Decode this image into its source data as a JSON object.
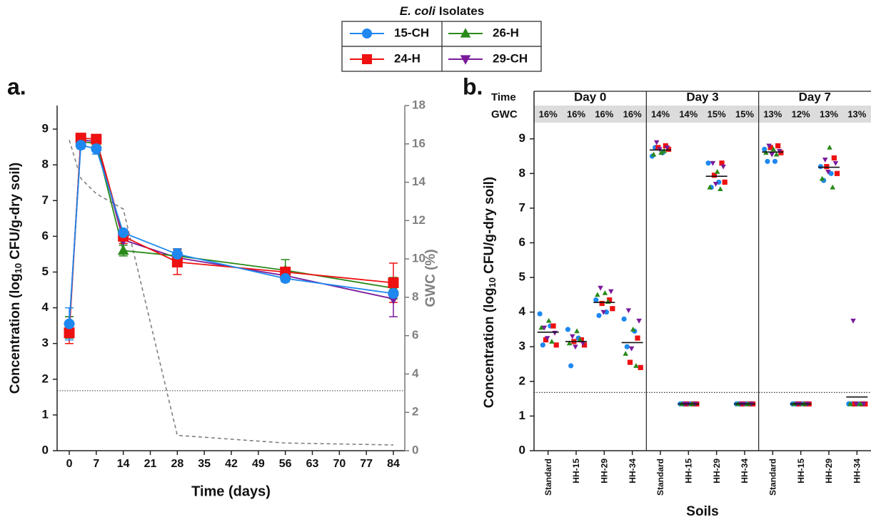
{
  "chart_data": [
    {
      "type": "line",
      "panel_label": "a.",
      "legend_title": [
        "E. coli",
        "Isolates"
      ],
      "x_label": "Time (days)",
      "y_label": [
        "Concentration (log",
        "10",
        "CFU/g-dry soil)"
      ],
      "y2_label": "GWC (%)",
      "x": [
        0,
        3,
        7,
        14,
        28,
        56,
        84
      ],
      "xlim": [
        -3.15,
        86.96
      ],
      "xticks": [
        0,
        7,
        14,
        21,
        28,
        35,
        42,
        49,
        56,
        63,
        70,
        77,
        84
      ],
      "ylim": [
        0,
        9.66
      ],
      "yticks": [
        0,
        1,
        2,
        3,
        4,
        5,
        6,
        7,
        8,
        9
      ],
      "y2lim": [
        0,
        18
      ],
      "y2ticks": [
        0,
        2,
        4,
        6,
        8,
        10,
        12,
        14,
        16,
        18
      ],
      "reference_line": 1.68,
      "series": [
        {
          "name": "15-CH",
          "color": "#1e88f0",
          "marker": "circle",
          "values": [
            3.55,
            8.55,
            8.45,
            6.1,
            5.5,
            4.82,
            4.4
          ],
          "errors": [
            0.45,
            0.1,
            0.15,
            0.1,
            0.15,
            0.1,
            0.1
          ]
        },
        {
          "name": "24-H",
          "color": "#ee1111",
          "marker": "square",
          "values": [
            3.3,
            8.75,
            8.72,
            6.0,
            5.28,
            5.0,
            4.7
          ],
          "errors": [
            0.3,
            0.05,
            0.05,
            0.2,
            0.35,
            0.1,
            0.55
          ]
        },
        {
          "name": "26-H",
          "color": "#2a8a1a",
          "marker": "triangle",
          "values": [
            3.45,
            8.65,
            8.6,
            5.6,
            5.45,
            5.05,
            4.55
          ],
          "errors": [
            0.3,
            0.1,
            0.1,
            0.15,
            0.2,
            0.3,
            0.3
          ]
        },
        {
          "name": "29-CH",
          "color": "#7a1a9a",
          "marker": "triangle-down",
          "values": [
            3.45,
            8.7,
            8.65,
            5.9,
            5.4,
            4.9,
            4.25
          ],
          "errors": [
            0.3,
            0.1,
            0.1,
            0.1,
            0.25,
            0.15,
            0.5
          ]
        },
        {
          "axis": "y2",
          "color": "#808080",
          "line_style": "dashed",
          "values": [
            16.2,
            14.2,
            13.4,
            12.6,
            0.8,
            0.4,
            0.3
          ]
        }
      ]
    },
    {
      "type": "dotplot",
      "panel_label": "b.",
      "x_label": "Soils",
      "y_label": [
        "Concentration (log",
        "10",
        "CFU/g-dry soil)"
      ],
      "header_labels": [
        "Time",
        "GWC"
      ],
      "categories": [
        "Standard",
        "HH-15",
        "HH-29",
        "HH-34",
        "Standard",
        "HH-15",
        "HH-29",
        "HH-34",
        "Standard",
        "HH-15",
        "HH-29",
        "HH-34"
      ],
      "groups": [
        {
          "label": "Day 0",
          "gwc": [
            {
              "value": 16,
              "label": "16%"
            },
            {
              "value": 16,
              "label": "16%"
            },
            {
              "value": 16,
              "label": "16%"
            },
            {
              "value": 16,
              "label": "16%"
            }
          ]
        },
        {
          "label": "Day 3",
          "gwc": [
            {
              "value": 14,
              "label": "14%"
            },
            {
              "value": 14,
              "label": "14%"
            },
            {
              "value": 15,
              "label": "15%"
            },
            {
              "value": 15,
              "label": "15%"
            }
          ]
        },
        {
          "label": "Day 7",
          "gwc": [
            {
              "value": 13,
              "label": "13%"
            },
            {
              "value": 12,
              "label": "12%"
            },
            {
              "value": 13,
              "label": "13%"
            },
            {
              "value": 13,
              "label": "13%"
            }
          ]
        }
      ],
      "ylim": [
        0,
        9.2
      ],
      "yticks": [
        0,
        1,
        2,
        3,
        4,
        5,
        6,
        7,
        8,
        9
      ],
      "reference_line": 1.68,
      "means": [
        3.42,
        3.15,
        4.28,
        3.12,
        8.68,
        1.35,
        7.92,
        1.35,
        8.62,
        1.35,
        8.18,
        1.55
      ],
      "series": [
        {
          "color": "#1e88f0",
          "marker": "circle",
          "values": [
            [
              3.95,
              3.6,
              3.05
            ],
            [
              3.5,
              3.25,
              2.45
            ],
            [
              4.35,
              4.0,
              3.9
            ],
            [
              3.8,
              3.45,
              3.0
            ],
            [
              8.5,
              8.6,
              8.75
            ],
            [
              1.35,
              1.35,
              1.35
            ],
            [
              8.3,
              7.75,
              7.6
            ],
            [
              1.35,
              1.35,
              1.35
            ],
            [
              8.7,
              8.35,
              8.35
            ],
            [
              1.35,
              1.35,
              1.35
            ],
            [
              8.2,
              8.0,
              7.8
            ],
            [
              1.35,
              1.35,
              1.35
            ]
          ]
        },
        {
          "color": "#ee1111",
          "marker": "square",
          "values": [
            [
              3.6,
              3.2,
              3.05
            ],
            [
              3.2,
              3.15,
              3.05
            ],
            [
              4.35,
              4.25,
              4.1
            ],
            [
              3.25,
              2.55,
              2.4
            ],
            [
              8.8,
              8.75,
              8.7
            ],
            [
              1.35,
              1.35,
              1.35
            ],
            [
              8.3,
              7.95,
              7.75
            ],
            [
              1.35,
              1.35,
              1.35
            ],
            [
              8.8,
              8.75,
              8.6
            ],
            [
              1.35,
              1.35,
              1.35
            ],
            [
              8.45,
              8.2,
              8.0
            ],
            [
              1.35,
              1.35,
              1.35
            ]
          ]
        },
        {
          "color": "#2a8a1a",
          "marker": "triangle",
          "values": [
            [
              3.75,
              3.55,
              3.15
            ],
            [
              3.45,
              3.1,
              3.2
            ],
            [
              4.55,
              4.5,
              4.3
            ],
            [
              3.5,
              2.8,
              2.45
            ],
            [
              8.6,
              8.55,
              8.65
            ],
            [
              1.35,
              1.35,
              1.35
            ],
            [
              8.05,
              7.6,
              7.55
            ],
            [
              1.35,
              1.35,
              1.35
            ],
            [
              8.7,
              8.6,
              8.55
            ],
            [
              1.35,
              1.35,
              1.35
            ],
            [
              8.75,
              7.85,
              7.6
            ],
            [
              1.35,
              1.35,
              1.35
            ]
          ]
        },
        {
          "color": "#7a1a9a",
          "marker": "triangle-down",
          "values": [
            [
              3.55,
              3.4,
              3.25
            ],
            [
              3.3,
              3.1,
              3.0
            ],
            [
              4.7,
              4.6,
              4.0
            ],
            [
              4.05,
              3.75,
              2.95
            ],
            [
              8.9,
              8.75,
              8.7
            ],
            [
              1.35,
              1.35,
              1.35
            ],
            [
              8.3,
              8.2,
              7.7
            ],
            [
              1.35,
              1.35,
              1.35
            ],
            [
              8.8,
              8.65,
              8.55
            ],
            [
              1.35,
              1.35,
              1.35
            ],
            [
              8.4,
              8.3,
              8.05
            ],
            [
              3.75,
              1.35,
              1.35
            ]
          ]
        }
      ]
    }
  ]
}
